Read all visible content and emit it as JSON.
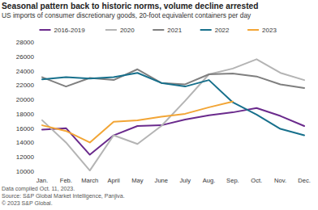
{
  "chart_data": {
    "type": "line",
    "title": "Seasonal pattern back to historic norms, volume decline arrested",
    "subtitle": "US imports of consumer discretionary goods, 20-foot equivalent containers per day",
    "categories": [
      "Jan.",
      "Feb.",
      "March",
      "April",
      "May",
      "June",
      "July",
      "Aug.",
      "Sep.",
      "Oct.",
      "Nov.",
      "Dec."
    ],
    "series": [
      {
        "name": "2016-2019",
        "color": "#6a2a8c",
        "values": [
          15800,
          16000,
          12300,
          15000,
          16300,
          16400,
          17200,
          17800,
          18200,
          18800,
          17700,
          16300
        ]
      },
      {
        "name": "2020",
        "color": "#b4b4b4",
        "values": [
          17100,
          14000,
          10100,
          15000,
          13800,
          16300,
          19800,
          23500,
          24300,
          25600,
          23700,
          22700
        ]
      },
      {
        "name": "2021",
        "color": "#7f7f7f",
        "values": [
          23100,
          21800,
          23000,
          22700,
          24200,
          22300,
          22100,
          23500,
          23600,
          23200,
          22100,
          21600
        ]
      },
      {
        "name": "2022",
        "color": "#17708c",
        "values": [
          22800,
          23100,
          22900,
          23100,
          23700,
          22300,
          21800,
          22700,
          19600,
          17900,
          15900,
          15000
        ]
      },
      {
        "name": "2023",
        "color": "#f2a535",
        "values": [
          16400,
          15600,
          14000,
          16900,
          17100,
          17600,
          18000,
          18900,
          19700,
          null,
          null,
          null
        ]
      }
    ],
    "ylim": [
      10000,
      28000
    ],
    "yticks": [
      10000,
      12000,
      14000,
      16000,
      18000,
      20000,
      22000,
      24000,
      26000,
      28000
    ],
    "grid": false,
    "legend": "top",
    "annotations": [
      "Data compiled Oct. 11, 2023.",
      "Source: S&P Global Market Intelligence, Panjiva.",
      "© 2023 S&P Global."
    ]
  }
}
